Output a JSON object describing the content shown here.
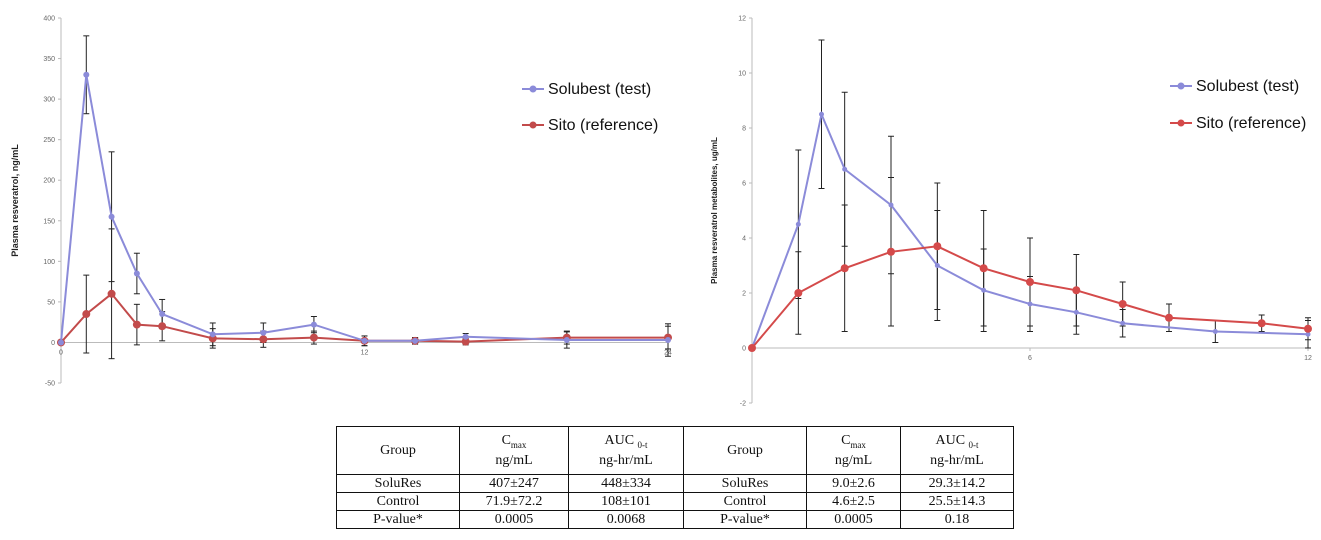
{
  "chart_data": [
    {
      "type": "line",
      "ylabel": "Plasma resveratrol, ng/mL",
      "ylim": [
        -50,
        400
      ],
      "yticks": [
        400,
        350,
        300,
        250,
        200,
        150,
        100,
        50,
        0,
        -50
      ],
      "xlim": [
        0,
        24
      ],
      "xticks": [
        0,
        12,
        24
      ],
      "x": [
        0,
        1,
        2,
        3,
        4,
        6,
        8,
        10,
        12,
        14,
        16,
        20,
        24
      ],
      "grid": false,
      "legend_position": "top-right",
      "series": [
        {
          "name": "Solubest (test)",
          "color": "#8B8BD9",
          "values": [
            0,
            330,
            155,
            85,
            35,
            10,
            12,
            22,
            2,
            2,
            7,
            3,
            3
          ],
          "error": [
            0,
            48,
            80,
            25,
            18,
            14,
            12,
            10,
            6,
            4,
            4,
            10,
            20
          ]
        },
        {
          "name": "Sito (reference)",
          "color": "#C24B4B",
          "values": [
            0,
            35,
            60,
            22,
            20,
            5,
            4,
            6,
            2,
            2,
            1,
            6,
            6
          ],
          "error": [
            0,
            48,
            80,
            25,
            18,
            12,
            10,
            8,
            6,
            4,
            4,
            8,
            14
          ]
        }
      ]
    },
    {
      "type": "line",
      "ylabel": "Plasma resveratrol metabolites, ug/mL",
      "ylim": [
        -2,
        12
      ],
      "yticks": [
        12,
        10,
        8,
        6,
        4,
        2,
        0,
        -2
      ],
      "xlim": [
        0,
        12
      ],
      "xticks": [
        6,
        12
      ],
      "grid": false,
      "legend_position": "top-right",
      "series": [
        {
          "name": "Solubest (test)",
          "color": "#8B8BD9",
          "x": [
            0,
            1,
            1.5,
            2,
            3,
            4,
            5,
            6,
            7,
            8,
            10,
            12
          ],
          "values": [
            0,
            4.5,
            8.5,
            6.5,
            5.2,
            3.0,
            2.1,
            1.6,
            1.3,
            0.9,
            0.6,
            0.5
          ],
          "error": [
            0,
            2.7,
            2.7,
            2.8,
            2.5,
            2.0,
            1.5,
            1.0,
            0.8,
            0.5,
            0.4,
            0.5
          ]
        },
        {
          "name": "Sito (reference)",
          "color": "#D44A4A",
          "x": [
            0,
            1,
            2,
            3,
            4,
            5,
            6,
            7,
            8,
            9,
            11,
            12
          ],
          "values": [
            0,
            2.0,
            2.9,
            3.5,
            3.7,
            2.9,
            2.4,
            2.1,
            1.6,
            1.1,
            0.9,
            0.7
          ],
          "error": [
            0,
            1.5,
            2.3,
            2.7,
            2.3,
            2.1,
            1.6,
            1.3,
            0.8,
            0.5,
            0.3,
            0.4
          ]
        }
      ]
    }
  ],
  "table": {
    "header": [
      {
        "main": "Group",
        "sub": ""
      },
      {
        "main": "C",
        "sub": "max",
        "unit": "ng/mL"
      },
      {
        "main": "AUC",
        "sub": "0-t",
        "unit": "ng-hr/mL"
      },
      {
        "main": "Group",
        "sub": ""
      },
      {
        "main": "C",
        "sub": "max",
        "unit": "ng/mL"
      },
      {
        "main": "AUC",
        "sub": "0-t",
        "unit": "ng-hr/mL"
      }
    ],
    "rows": [
      [
        "SoluRes",
        "407±247",
        "448±334",
        "SoluRes",
        "9.0±2.6",
        "29.3±14.2"
      ],
      [
        "Control",
        "71.9±72.2",
        "108±101",
        "Control",
        "4.6±2.5",
        "25.5±14.3"
      ],
      [
        "P-value*",
        "0.0005",
        "0.0068",
        "P-value*",
        "0.0005",
        "0.18"
      ]
    ]
  }
}
